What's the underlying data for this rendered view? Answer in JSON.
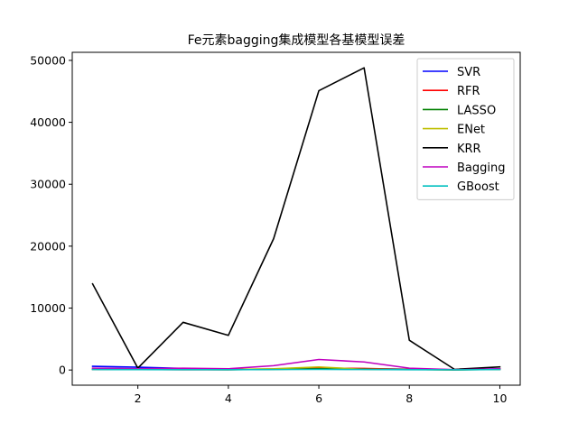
{
  "chart_data": {
    "type": "line",
    "title": "Fe元素bagging集成模型各基模型误差",
    "xlabel": "",
    "ylabel": "",
    "x": [
      1,
      2,
      3,
      4,
      5,
      6,
      7,
      8,
      9,
      10
    ],
    "xlim": [
      0.55,
      10.45
    ],
    "ylim": [
      -2450,
      51300
    ],
    "xticks": [
      2,
      4,
      6,
      8,
      10
    ],
    "yticks": [
      0,
      10000,
      20000,
      30000,
      40000,
      50000
    ],
    "grid": false,
    "legend_position": "top-right",
    "series": [
      {
        "name": "SVR",
        "color": "#0000ff",
        "values": [
          600,
          450,
          250,
          100,
          150,
          250,
          200,
          150,
          50,
          200
        ]
      },
      {
        "name": "RFR",
        "color": "#ff0000",
        "values": [
          100,
          80,
          60,
          50,
          150,
          300,
          250,
          100,
          40,
          120
        ]
      },
      {
        "name": "LASSO",
        "color": "#008000",
        "values": [
          120,
          100,
          80,
          60,
          100,
          200,
          150,
          80,
          30,
          100
        ]
      },
      {
        "name": "ENet",
        "color": "#bfbf00",
        "values": [
          150,
          120,
          100,
          80,
          200,
          500,
          100,
          90,
          40,
          150
        ]
      },
      {
        "name": "KRR",
        "color": "#000000",
        "values": [
          13900,
          300,
          7700,
          5600,
          21200,
          45100,
          48800,
          4800,
          100,
          500
        ]
      },
      {
        "name": "Bagging",
        "color": "#bf00bf",
        "values": [
          300,
          200,
          300,
          200,
          700,
          1700,
          1300,
          300,
          50,
          200
        ]
      },
      {
        "name": "GBoost",
        "color": "#00bfbf",
        "values": [
          80,
          70,
          60,
          50,
          80,
          100,
          90,
          60,
          30,
          80
        ]
      }
    ]
  }
}
